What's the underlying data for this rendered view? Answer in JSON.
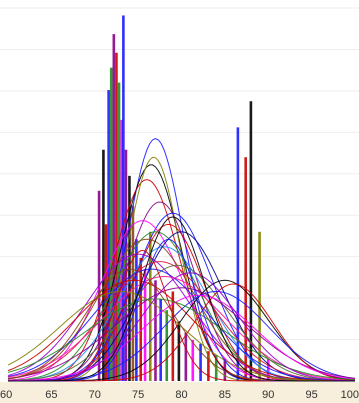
{
  "chart_data": {
    "type": "line",
    "title": "",
    "xlabel": "",
    "ylabel": "",
    "xlim": [
      60,
      100
    ],
    "ylim": [
      0,
      1
    ],
    "xticks": [
      "60",
      "65",
      "70",
      "75",
      "80",
      "85",
      "90",
      "95",
      "100"
    ],
    "grid": true,
    "legend": "none",
    "colors": {
      "axis_band": "#f7eedb",
      "grid": "#eeeeee",
      "palette": [
        "#1a1aff",
        "#cc0000",
        "#8b008b",
        "#228b22",
        "#ff00ff",
        "#8b4513",
        "#808000",
        "#000000",
        "#1e90ff",
        "#dc143c",
        "#9400d3",
        "#556b2f",
        "#ff1493",
        "#00008b"
      ]
    },
    "bars": [
      {
        "x": 70.5,
        "y": 0.51,
        "color": "#8b008b"
      },
      {
        "x": 71.0,
        "y": 0.62,
        "color": "#000000"
      },
      {
        "x": 71.3,
        "y": 0.42,
        "color": "#cc0000"
      },
      {
        "x": 71.6,
        "y": 0.78,
        "color": "#1a1aff"
      },
      {
        "x": 71.9,
        "y": 0.84,
        "color": "#228b22"
      },
      {
        "x": 72.2,
        "y": 0.93,
        "color": "#8b008b"
      },
      {
        "x": 72.5,
        "y": 0.88,
        "color": "#cc0000"
      },
      {
        "x": 72.8,
        "y": 0.8,
        "color": "#228b22"
      },
      {
        "x": 73.1,
        "y": 0.7,
        "color": "#ff00ff"
      },
      {
        "x": 73.3,
        "y": 0.98,
        "color": "#1a1aff"
      },
      {
        "x": 73.6,
        "y": 0.62,
        "color": "#8b008b"
      },
      {
        "x": 74.0,
        "y": 0.55,
        "color": "#000000"
      },
      {
        "x": 74.4,
        "y": 0.47,
        "color": "#8b4513"
      },
      {
        "x": 74.8,
        "y": 0.38,
        "color": "#1a1aff"
      },
      {
        "x": 75.3,
        "y": 0.33,
        "color": "#cc0000"
      },
      {
        "x": 75.8,
        "y": 0.3,
        "color": "#ff00ff"
      },
      {
        "x": 76.4,
        "y": 0.4,
        "color": "#808000"
      },
      {
        "x": 77.0,
        "y": 0.27,
        "color": "#8b008b"
      },
      {
        "x": 77.6,
        "y": 0.22,
        "color": "#1a1aff"
      },
      {
        "x": 78.3,
        "y": 0.19,
        "color": "#228b22"
      },
      {
        "x": 79.0,
        "y": 0.24,
        "color": "#cc0000"
      },
      {
        "x": 79.7,
        "y": 0.16,
        "color": "#000000"
      },
      {
        "x": 80.5,
        "y": 0.13,
        "color": "#8b008b"
      },
      {
        "x": 81.3,
        "y": 0.11,
        "color": "#ff00ff"
      },
      {
        "x": 82.2,
        "y": 0.1,
        "color": "#1a1aff"
      },
      {
        "x": 83.1,
        "y": 0.08,
        "color": "#cc0000"
      },
      {
        "x": 84.0,
        "y": 0.07,
        "color": "#228b22"
      },
      {
        "x": 85.0,
        "y": 0.06,
        "color": "#8b008b"
      },
      {
        "x": 86.5,
        "y": 0.68,
        "color": "#1a1aff"
      },
      {
        "x": 87.4,
        "y": 0.6,
        "color": "#cc0000"
      },
      {
        "x": 88.0,
        "y": 0.75,
        "color": "#000000"
      },
      {
        "x": 89.0,
        "y": 0.4,
        "color": "#808000"
      },
      {
        "x": 90.0,
        "y": 0.06,
        "color": "#ff00ff"
      }
    ],
    "series": [
      {
        "mu": 77.0,
        "sigma": 3.2,
        "peak": 0.65,
        "color": "#1a1aff"
      },
      {
        "mu": 76.5,
        "sigma": 3.5,
        "peak": 0.58,
        "color": "#000000"
      },
      {
        "mu": 76.0,
        "sigma": 3.8,
        "peak": 0.54,
        "color": "#cc0000"
      },
      {
        "mu": 76.8,
        "sigma": 3.0,
        "peak": 0.6,
        "color": "#808000"
      },
      {
        "mu": 77.5,
        "sigma": 4.0,
        "peak": 0.48,
        "color": "#8b008b"
      },
      {
        "mu": 79.0,
        "sigma": 4.5,
        "peak": 0.45,
        "color": "#1a1aff"
      },
      {
        "mu": 78.5,
        "sigma": 4.2,
        "peak": 0.42,
        "color": "#cc0000"
      },
      {
        "mu": 75.5,
        "sigma": 4.8,
        "peak": 0.43,
        "color": "#ff00ff"
      },
      {
        "mu": 77.0,
        "sigma": 5.0,
        "peak": 0.4,
        "color": "#228b22"
      },
      {
        "mu": 76.0,
        "sigma": 5.5,
        "peak": 0.38,
        "color": "#8b4513"
      },
      {
        "mu": 78.0,
        "sigma": 5.2,
        "peak": 0.36,
        "color": "#1e90ff"
      },
      {
        "mu": 80.0,
        "sigma": 4.8,
        "peak": 0.4,
        "color": "#00008b"
      },
      {
        "mu": 75.0,
        "sigma": 6.0,
        "peak": 0.34,
        "color": "#9400d3"
      },
      {
        "mu": 77.5,
        "sigma": 6.2,
        "peak": 0.32,
        "color": "#dc143c"
      },
      {
        "mu": 79.5,
        "sigma": 5.8,
        "peak": 0.31,
        "color": "#556b2f"
      },
      {
        "mu": 76.5,
        "sigma": 6.5,
        "peak": 0.3,
        "color": "#1a1aff"
      },
      {
        "mu": 78.0,
        "sigma": 7.0,
        "peak": 0.28,
        "color": "#ff1493"
      },
      {
        "mu": 74.5,
        "sigma": 6.8,
        "peak": 0.27,
        "color": "#cc0000"
      },
      {
        "mu": 85.0,
        "sigma": 5.0,
        "peak": 0.27,
        "color": "#000000"
      },
      {
        "mu": 86.0,
        "sigma": 4.5,
        "peak": 0.26,
        "color": "#cc0000"
      },
      {
        "mu": 84.0,
        "sigma": 6.0,
        "peak": 0.24,
        "color": "#1a1aff"
      },
      {
        "mu": 80.0,
        "sigma": 7.5,
        "peak": 0.25,
        "color": "#8b008b"
      },
      {
        "mu": 73.0,
        "sigma": 7.0,
        "peak": 0.24,
        "color": "#808000"
      },
      {
        "mu": 82.0,
        "sigma": 6.5,
        "peak": 0.23,
        "color": "#ff00ff"
      },
      {
        "mu": 77.0,
        "sigma": 8.0,
        "peak": 0.22,
        "color": "#228b22"
      },
      {
        "mu": 75.5,
        "sigma": 3.0,
        "peak": 0.35,
        "color": "#cc0000"
      },
      {
        "mu": 78.5,
        "sigma": 3.3,
        "peak": 0.38,
        "color": "#1a1aff"
      },
      {
        "mu": 74.0,
        "sigma": 5.0,
        "peak": 0.3,
        "color": "#8b4513"
      },
      {
        "mu": 81.0,
        "sigma": 5.5,
        "peak": 0.29,
        "color": "#9400d3"
      },
      {
        "mu": 79.0,
        "sigma": 3.6,
        "peak": 0.44,
        "color": "#000000"
      }
    ]
  }
}
